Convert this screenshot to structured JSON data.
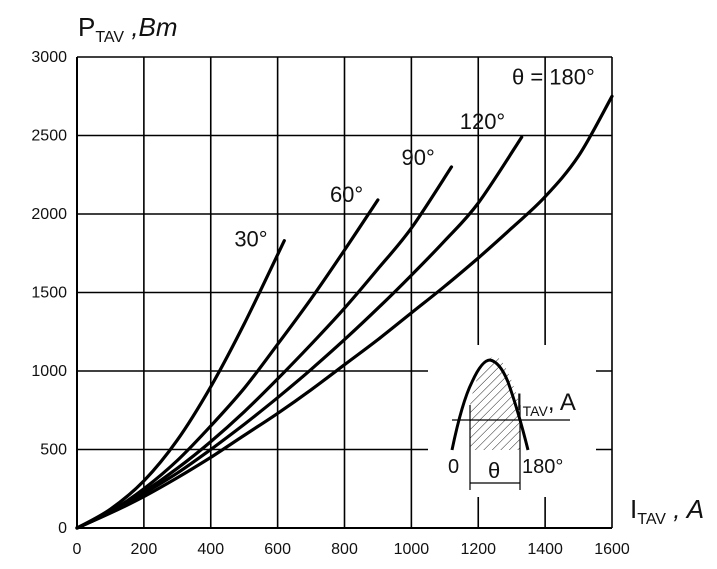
{
  "chart_data": {
    "type": "line",
    "ylabel": "P",
    "ylabel_sub": "TAV",
    "ylabel_unit": " ,Bm",
    "xlabel": "I",
    "xlabel_sub": "TAV",
    "xlabel_unit": " , A",
    "xlim": [
      0,
      1600
    ],
    "ylim": [
      0,
      3000
    ],
    "xticks": [
      0,
      200,
      400,
      600,
      800,
      1000,
      1200,
      1400,
      1600
    ],
    "yticks": [
      0,
      500,
      1000,
      1500,
      2000,
      2500,
      3000
    ],
    "grid": true,
    "series": [
      {
        "name": "30°",
        "x": [
          0,
          100,
          200,
          300,
          400,
          500,
          620
        ],
        "y": [
          0,
          120,
          300,
          560,
          900,
          1300,
          1830
        ]
      },
      {
        "name": "60°",
        "x": [
          0,
          100,
          200,
          300,
          400,
          500,
          600,
          700,
          800,
          900
        ],
        "y": [
          0,
          105,
          250,
          430,
          650,
          890,
          1170,
          1460,
          1770,
          2090
        ]
      },
      {
        "name": "90°",
        "x": [
          0,
          100,
          200,
          300,
          400,
          500,
          600,
          700,
          800,
          900,
          1000,
          1120
        ],
        "y": [
          0,
          100,
          230,
          380,
          550,
          740,
          950,
          1170,
          1400,
          1650,
          1910,
          2300
        ]
      },
      {
        "name": "120°",
        "x": [
          0,
          100,
          200,
          300,
          400,
          500,
          600,
          700,
          800,
          900,
          1000,
          1100,
          1200,
          1330
        ],
        "y": [
          0,
          100,
          220,
          350,
          500,
          660,
          830,
          1010,
          1200,
          1400,
          1610,
          1830,
          2070,
          2490
        ]
      },
      {
        "name": "θ = 180°",
        "x": [
          0,
          100,
          200,
          300,
          400,
          500,
          600,
          700,
          800,
          900,
          1000,
          1100,
          1200,
          1300,
          1400,
          1500,
          1600
        ],
        "y": [
          0,
          95,
          200,
          320,
          450,
          590,
          730,
          880,
          1040,
          1200,
          1370,
          1540,
          1720,
          1910,
          2110,
          2370,
          2750
        ]
      }
    ],
    "inset": {
      "label_main": "I",
      "label_sub": "TAV",
      "label_unit": ", A",
      "left_label": "0",
      "mid_label": "θ",
      "right_label": "180°"
    }
  }
}
